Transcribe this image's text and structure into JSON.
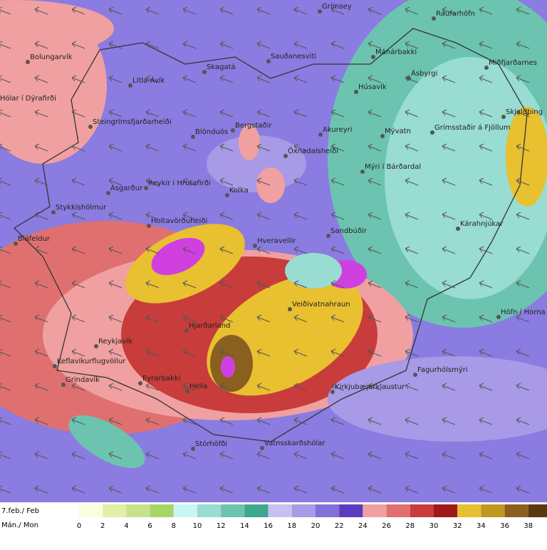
{
  "places": [
    "Grímsey",
    "Raufarhöfn",
    "Sauðanesviti",
    "Mánárbakki",
    "Miðfjarðarnes",
    "Bolungarvík",
    "Ásbyrgi",
    "Skagatá",
    "Litla-Ávík",
    "Húsavík",
    "Hólar í Dýrafirði",
    "Skjaldþing",
    "Steingrímsfjarðarheiði",
    "Blönduós",
    "Bergstaðir",
    "Akureyri",
    "Mývatn",
    "Grímsstaðir á Fjöllum",
    "Öxnadalsheiði",
    "Mýri í Bárðardal",
    "Ásgarður",
    "Reykir í Hrútafirði",
    "Kolka",
    "Stykkishólmur",
    "Kárahnjúkar",
    "Holtavörðuheiði",
    "Sandbúðir",
    "Hveravellir",
    "Bláfeldur",
    "Veiðivatnahraun",
    "Hjarðarland",
    "Höfn í Horna",
    "Reykjavík",
    "Keflavíkurflugvöllur",
    "Eyrarbakki",
    "Hella",
    "Grindavík",
    "Fagurhólsmýri",
    "Kirkjubæjarklaustur",
    "Stórhöfði",
    "Vatnsskarðshólar"
  ],
  "legend": {
    "date": "7.feb./ Feb",
    "day": "Mán./ Mon",
    "ticks": [
      0,
      2,
      4,
      6,
      8,
      10,
      12,
      14,
      16,
      18,
      20,
      22,
      24,
      26,
      28,
      30,
      32,
      34,
      36,
      38
    ],
    "colors": [
      "#fafde0",
      "#e1f0a8",
      "#c7e28a",
      "#a8d468",
      "#c8f5f5",
      "#98dcd2",
      "#6cc4b0",
      "#3ea88e",
      "#c8c0f0",
      "#a89ae6",
      "#8070d8",
      "#5a3cc0",
      "#f0a0a0",
      "#e07070",
      "#c83c3c",
      "#a01818",
      "#e8c030",
      "#c09820",
      "#8a6020",
      "#5a3810"
    ]
  }
}
